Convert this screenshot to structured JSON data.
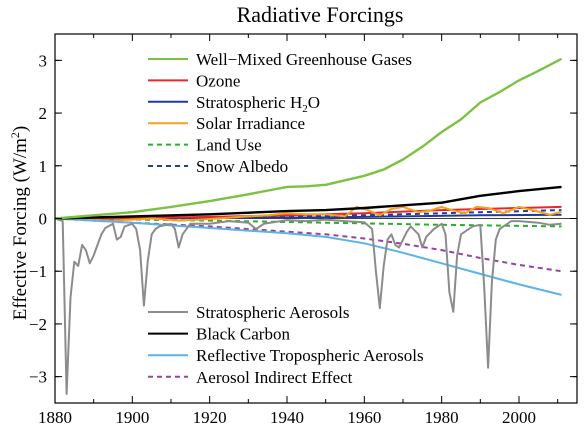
{
  "chart_data": {
    "type": "line",
    "title": "Radiative Forcings",
    "xlabel": "",
    "ylabel": "Effective Forcing (W/m",
    "ylabel_sup": "2",
    "ylabel_close": ")",
    "xlim": [
      1880,
      2015
    ],
    "ylim": [
      -3.5,
      3.5
    ],
    "xticks": [
      1880,
      1900,
      1920,
      1940,
      1960,
      1980,
      2000
    ],
    "yticks": [
      -3,
      -2,
      -1,
      0,
      1,
      2,
      3
    ],
    "grid": false,
    "zero_line": true,
    "legend_top": [
      "wmghg",
      "ozone",
      "strat_h2o",
      "solar",
      "land_use",
      "snow_albedo"
    ],
    "legend_bottom": [
      "strat_aero",
      "black_carbon",
      "refl_trop_aero",
      "aero_indirect"
    ],
    "series": [
      {
        "id": "wmghg",
        "name": "Well−Mixed Greenhouse Gases",
        "color": "#7cc242",
        "dash": "solid",
        "points": [
          [
            1880,
            0.0
          ],
          [
            1890,
            0.06
          ],
          [
            1900,
            0.12
          ],
          [
            1910,
            0.22
          ],
          [
            1920,
            0.33
          ],
          [
            1930,
            0.46
          ],
          [
            1940,
            0.6
          ],
          [
            1945,
            0.61
          ],
          [
            1950,
            0.64
          ],
          [
            1960,
            0.81
          ],
          [
            1965,
            0.93
          ],
          [
            1970,
            1.12
          ],
          [
            1975,
            1.36
          ],
          [
            1980,
            1.64
          ],
          [
            1985,
            1.88
          ],
          [
            1990,
            2.2
          ],
          [
            1995,
            2.4
          ],
          [
            2000,
            2.62
          ],
          [
            2005,
            2.8
          ],
          [
            2011,
            3.03
          ]
        ]
      },
      {
        "id": "ozone",
        "name": "Ozone",
        "color": "#e8262b",
        "dash": "solid",
        "points": [
          [
            1880,
            0.0
          ],
          [
            1900,
            0.01
          ],
          [
            1920,
            0.03
          ],
          [
            1940,
            0.06
          ],
          [
            1960,
            0.1
          ],
          [
            1970,
            0.13
          ],
          [
            1980,
            0.16
          ],
          [
            1990,
            0.18
          ],
          [
            2000,
            0.2
          ],
          [
            2011,
            0.22
          ]
        ]
      },
      {
        "id": "strat_h2o",
        "name": "Stratospheric H",
        "name_sub": "2",
        "name_tail": "O",
        "color": "#1e3c96",
        "dash": "solid",
        "points": [
          [
            1880,
            0.0
          ],
          [
            1920,
            0.01
          ],
          [
            1950,
            0.02
          ],
          [
            1970,
            0.04
          ],
          [
            1990,
            0.06
          ],
          [
            2011,
            0.07
          ]
        ]
      },
      {
        "id": "solar",
        "name": "Solar Irradiance",
        "color": "#f4a21d",
        "dash": "solid",
        "points": [
          [
            1880,
            0.0
          ],
          [
            1895,
            -0.04
          ],
          [
            1905,
            0.0
          ],
          [
            1912,
            -0.04
          ],
          [
            1920,
            -0.01
          ],
          [
            1928,
            0.03
          ],
          [
            1935,
            0.06
          ],
          [
            1940,
            0.1
          ],
          [
            1945,
            0.08
          ],
          [
            1950,
            0.08
          ],
          [
            1955,
            0.04
          ],
          [
            1958,
            0.22
          ],
          [
            1961,
            0.16
          ],
          [
            1964,
            0.06
          ],
          [
            1967,
            0.18
          ],
          [
            1970,
            0.22
          ],
          [
            1974,
            0.12
          ],
          [
            1977,
            0.15
          ],
          [
            1980,
            0.22
          ],
          [
            1983,
            0.15
          ],
          [
            1986,
            0.1
          ],
          [
            1989,
            0.22
          ],
          [
            1992,
            0.2
          ],
          [
            1996,
            0.1
          ],
          [
            2000,
            0.22
          ],
          [
            2004,
            0.15
          ],
          [
            2008,
            0.07
          ],
          [
            2011,
            0.13
          ]
        ]
      },
      {
        "id": "land_use",
        "name": "Land Use",
        "color": "#2cae2c",
        "dash": "dashed",
        "points": [
          [
            1880,
            0.0
          ],
          [
            1920,
            -0.04
          ],
          [
            1950,
            -0.08
          ],
          [
            1980,
            -0.12
          ],
          [
            2011,
            -0.15
          ]
        ]
      },
      {
        "id": "snow_albedo",
        "name": "Snow Albedo",
        "color": "#2a3aa0",
        "dash": "dashed",
        "points": [
          [
            1880,
            0.0
          ],
          [
            1900,
            0.01
          ],
          [
            1930,
            0.03
          ],
          [
            1960,
            0.06
          ],
          [
            1990,
            0.12
          ],
          [
            2011,
            0.16
          ]
        ]
      },
      {
        "id": "strat_aero",
        "name": "Stratospheric Aerosols",
        "color": "#8c8c8c",
        "dash": "solid",
        "points": [
          [
            1880,
            0.0
          ],
          [
            1882,
            -0.05
          ],
          [
            1883,
            -3.33
          ],
          [
            1884,
            -1.5
          ],
          [
            1885,
            -0.82
          ],
          [
            1886,
            -0.9
          ],
          [
            1887,
            -0.5
          ],
          [
            1888,
            -0.6
          ],
          [
            1889,
            -0.85
          ],
          [
            1890,
            -0.7
          ],
          [
            1891,
            -0.5
          ],
          [
            1892,
            -0.3
          ],
          [
            1893,
            -0.18
          ],
          [
            1895,
            -0.1
          ],
          [
            1896,
            -0.4
          ],
          [
            1897,
            -0.35
          ],
          [
            1898,
            -0.15
          ],
          [
            1900,
            -0.1
          ],
          [
            1901,
            -0.2
          ],
          [
            1902,
            -0.6
          ],
          [
            1903,
            -1.65
          ],
          [
            1904,
            -0.8
          ],
          [
            1905,
            -0.3
          ],
          [
            1906,
            -0.2
          ],
          [
            1907,
            -0.15
          ],
          [
            1910,
            -0.1
          ],
          [
            1911,
            -0.2
          ],
          [
            1912,
            -0.55
          ],
          [
            1913,
            -0.3
          ],
          [
            1915,
            -0.1
          ],
          [
            1920,
            -0.1
          ],
          [
            1925,
            -0.05
          ],
          [
            1930,
            -0.08
          ],
          [
            1932,
            -0.2
          ],
          [
            1934,
            -0.1
          ],
          [
            1940,
            -0.03
          ],
          [
            1945,
            -0.05
          ],
          [
            1950,
            -0.02
          ],
          [
            1955,
            -0.05
          ],
          [
            1960,
            -0.07
          ],
          [
            1962,
            -0.2
          ],
          [
            1963,
            -1.0
          ],
          [
            1964,
            -1.7
          ],
          [
            1965,
            -0.9
          ],
          [
            1966,
            -0.4
          ],
          [
            1967,
            -0.3
          ],
          [
            1968,
            -0.5
          ],
          [
            1969,
            -0.55
          ],
          [
            1970,
            -0.4
          ],
          [
            1971,
            -0.25
          ],
          [
            1972,
            -0.15
          ],
          [
            1974,
            -0.3
          ],
          [
            1975,
            -0.55
          ],
          [
            1976,
            -0.35
          ],
          [
            1978,
            -0.2
          ],
          [
            1980,
            -0.1
          ],
          [
            1981,
            -0.3
          ],
          [
            1982,
            -1.4
          ],
          [
            1983,
            -1.77
          ],
          [
            1984,
            -0.7
          ],
          [
            1985,
            -0.3
          ],
          [
            1986,
            -0.25
          ],
          [
            1988,
            -0.15
          ],
          [
            1990,
            -0.12
          ],
          [
            1991,
            -1.3
          ],
          [
            1992,
            -2.83
          ],
          [
            1993,
            -1.2
          ],
          [
            1994,
            -0.4
          ],
          [
            1995,
            -0.2
          ],
          [
            1998,
            -0.05
          ],
          [
            2000,
            -0.05
          ],
          [
            2005,
            -0.08
          ],
          [
            2008,
            -0.12
          ],
          [
            2011,
            -0.1
          ]
        ]
      },
      {
        "id": "black_carbon",
        "name": "Black Carbon",
        "color": "#000000",
        "dash": "solid",
        "points": [
          [
            1880,
            0.0
          ],
          [
            1900,
            0.04
          ],
          [
            1920,
            0.08
          ],
          [
            1940,
            0.14
          ],
          [
            1950,
            0.16
          ],
          [
            1960,
            0.2
          ],
          [
            1970,
            0.25
          ],
          [
            1980,
            0.3
          ],
          [
            1990,
            0.43
          ],
          [
            2000,
            0.52
          ],
          [
            2011,
            0.6
          ]
        ]
      },
      {
        "id": "refl_trop_aero",
        "name": "Reflective Tropospheric Aerosols",
        "color": "#5ab4e5",
        "dash": "solid",
        "points": [
          [
            1880,
            0.0
          ],
          [
            1900,
            -0.08
          ],
          [
            1920,
            -0.18
          ],
          [
            1940,
            -0.28
          ],
          [
            1950,
            -0.35
          ],
          [
            1960,
            -0.47
          ],
          [
            1970,
            -0.65
          ],
          [
            1980,
            -0.85
          ],
          [
            1990,
            -1.05
          ],
          [
            2000,
            -1.25
          ],
          [
            2011,
            -1.45
          ]
        ]
      },
      {
        "id": "aero_indirect",
        "name": "Aerosol Indirect Effect",
        "color": "#9b3fa5",
        "dash": "dashed",
        "points": [
          [
            1880,
            0.0
          ],
          [
            1900,
            -0.08
          ],
          [
            1920,
            -0.15
          ],
          [
            1940,
            -0.25
          ],
          [
            1950,
            -0.3
          ],
          [
            1960,
            -0.38
          ],
          [
            1970,
            -0.48
          ],
          [
            1980,
            -0.6
          ],
          [
            1990,
            -0.75
          ],
          [
            2000,
            -0.88
          ],
          [
            2011,
            -1.0
          ]
        ]
      }
    ]
  }
}
